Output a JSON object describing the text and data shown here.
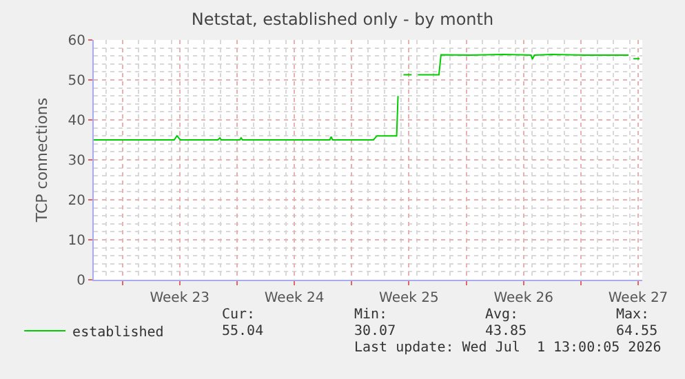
{
  "chart_data": {
    "type": "line",
    "title": "Netstat, established only - by month",
    "ylabel": "TCP connections",
    "xlim": [
      "2026-05-30T06:00",
      "2026-07-02T18:00"
    ],
    "xticks": [
      {
        "value": "2026-06-01",
        "label": null
      },
      {
        "value": "2026-06-04T12:00",
        "label": "Week 23"
      },
      {
        "value": "2026-06-08",
        "label": null
      },
      {
        "value": "2026-06-11T12:00",
        "label": "Week 24"
      },
      {
        "value": "2026-06-15",
        "label": null
      },
      {
        "value": "2026-06-18T12:00",
        "label": "Week 25"
      },
      {
        "value": "2026-06-22",
        "label": null
      },
      {
        "value": "2026-06-25T12:00",
        "label": "Week 26"
      },
      {
        "value": "2026-06-29",
        "label": null
      },
      {
        "value": "2026-07-02T12:00",
        "label": "Week 27"
      }
    ],
    "ylim": [
      0,
      60
    ],
    "yticks": [
      0,
      10,
      20,
      30,
      40,
      50,
      60
    ],
    "grid": true,
    "legend": "bottom left",
    "marker": "none",
    "line_style": "solid",
    "x": [
      "2026-05-30T06:00",
      "2026-06-04T04:00",
      "2026-06-04T08:00",
      "2026-06-04T13:00",
      "2026-06-06T20:00",
      "2026-06-06T23:00",
      "2026-06-07T01:00",
      "2026-06-08T04:00",
      "2026-06-08T06:00",
      "2026-06-08T08:00",
      "2026-06-13T16:00",
      "2026-06-13T18:00",
      "2026-06-13T20:00",
      "2026-06-16T08:00",
      "2026-06-16T13:00",
      "2026-06-17T18:00",
      "2026-06-17T20:00",
      "2026-06-17T23:00",
      "2026-06-18T04:00",
      "2026-06-18T16:00",
      "2026-06-18T18:00",
      "2026-06-19T01:00",
      "2026-06-20T08:00",
      "2026-06-20T11:00",
      "2026-06-22T06:00",
      "2026-06-24T06:00",
      "2026-06-25T23:00",
      "2026-06-26T01:00",
      "2026-06-26T04:00",
      "2026-06-27T06:00",
      "2026-06-29T06:00",
      "2026-07-01T22:00",
      "2026-07-02T02:00",
      "2026-07-02T05:00",
      "2026-07-02T14:00"
    ],
    "series": [
      {
        "name": "established",
        "color": "#00cc00",
        "values": [
          35,
          35,
          36,
          35,
          35,
          35.5,
          35,
          35,
          35.5,
          35,
          35,
          35.8,
          35,
          35,
          36,
          36,
          46,
          null,
          51.3,
          51.3,
          null,
          51.3,
          51.3,
          56.3,
          56.2,
          56.4,
          56.2,
          55.2,
          56.2,
          56.4,
          56.2,
          56.2,
          null,
          55.3,
          55.3
        ]
      }
    ],
    "annotations": [
      "Cur:",
      "55.04",
      "Min:",
      "30.07",
      "Avg:",
      "43.85",
      "Max:",
      "64.55",
      "Last update: Wed Jul  1 13:00:05 2026"
    ]
  }
}
